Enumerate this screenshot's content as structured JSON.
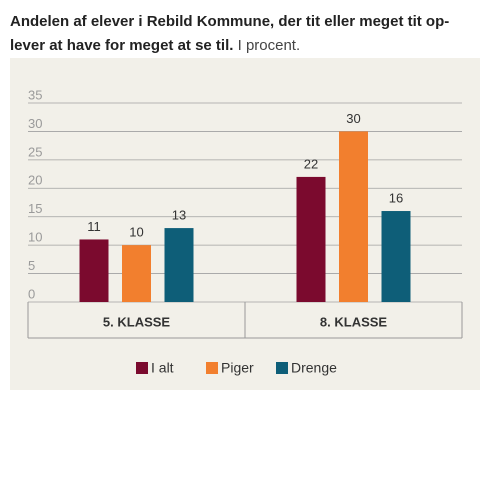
{
  "chart_data": {
    "type": "bar",
    "title_lines": [
      "Andelen af elever i Rebild Kommune, der tit eller meget tit op-",
      "lever at have for meget at se til."
    ],
    "subtitle": "I procent.",
    "categories": [
      "5. KLASSE",
      "8. KLASSE"
    ],
    "series": [
      {
        "name": "I alt",
        "color": "#7b0a2e",
        "values": [
          11,
          22
        ]
      },
      {
        "name": "Piger",
        "color": "#f27f2e",
        "values": [
          10,
          30
        ]
      },
      {
        "name": "Drenge",
        "color": "#0e5e78",
        "values": [
          13,
          16
        ]
      }
    ],
    "ylim": [
      0,
      35
    ],
    "yticks": [
      0,
      5,
      10,
      15,
      20,
      25,
      30,
      35
    ],
    "grid": true,
    "legend": "bottom"
  }
}
